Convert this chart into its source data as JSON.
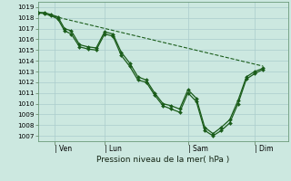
{
  "bg_color": "#cce8e0",
  "grid_color": "#aacccc",
  "line_color": "#1a5c1a",
  "xlabel": "Pression niveau de la mer( hPa )",
  "ylim": [
    1006.5,
    1019.5
  ],
  "yticks": [
    1007,
    1008,
    1009,
    1010,
    1011,
    1012,
    1013,
    1014,
    1015,
    1016,
    1017,
    1018,
    1019
  ],
  "xtick_labels": [
    "| Ven",
    "| Lun",
    "| Sam",
    "| Dim"
  ],
  "xtick_positions": [
    1,
    4,
    9,
    13
  ],
  "xlim": [
    0,
    15
  ],
  "series1": [
    [
      0.0,
      1018.5
    ],
    [
      0.4,
      1018.5
    ],
    [
      0.8,
      1018.3
    ],
    [
      1.2,
      1018.1
    ],
    [
      1.6,
      1017.0
    ],
    [
      2.0,
      1016.8
    ],
    [
      2.5,
      1015.5
    ],
    [
      3.0,
      1015.3
    ],
    [
      3.5,
      1015.2
    ],
    [
      4.0,
      1016.7
    ],
    [
      4.5,
      1016.5
    ],
    [
      5.0,
      1014.8
    ],
    [
      5.5,
      1013.8
    ],
    [
      6.0,
      1012.5
    ],
    [
      6.5,
      1012.2
    ],
    [
      7.0,
      1011.0
    ],
    [
      7.5,
      1010.0
    ],
    [
      8.0,
      1009.8
    ],
    [
      8.5,
      1009.5
    ],
    [
      9.0,
      1011.3
    ],
    [
      9.5,
      1010.5
    ],
    [
      10.0,
      1007.8
    ],
    [
      10.5,
      1007.2
    ],
    [
      11.0,
      1007.8
    ],
    [
      11.5,
      1008.5
    ],
    [
      12.0,
      1010.3
    ],
    [
      12.5,
      1012.5
    ],
    [
      13.0,
      1013.0
    ],
    [
      13.5,
      1013.3
    ]
  ],
  "series2": [
    [
      0.0,
      1018.5
    ],
    [
      0.4,
      1018.4
    ],
    [
      0.8,
      1018.2
    ],
    [
      1.2,
      1017.9
    ],
    [
      1.6,
      1016.8
    ],
    [
      2.0,
      1016.5
    ],
    [
      2.5,
      1015.3
    ],
    [
      3.0,
      1015.1
    ],
    [
      3.5,
      1015.0
    ],
    [
      4.0,
      1016.5
    ],
    [
      4.5,
      1016.3
    ],
    [
      5.0,
      1014.5
    ],
    [
      5.5,
      1013.5
    ],
    [
      6.0,
      1012.2
    ],
    [
      6.5,
      1012.0
    ],
    [
      7.0,
      1010.8
    ],
    [
      7.5,
      1009.8
    ],
    [
      8.0,
      1009.5
    ],
    [
      8.5,
      1009.2
    ],
    [
      9.0,
      1011.0
    ],
    [
      9.5,
      1010.2
    ],
    [
      10.0,
      1007.5
    ],
    [
      10.5,
      1007.0
    ],
    [
      11.0,
      1007.5
    ],
    [
      11.5,
      1008.2
    ],
    [
      12.0,
      1010.0
    ],
    [
      12.5,
      1012.3
    ],
    [
      13.0,
      1012.8
    ],
    [
      13.5,
      1013.2
    ]
  ],
  "series_trend": [
    [
      0.0,
      1018.5
    ],
    [
      13.5,
      1013.5
    ]
  ]
}
